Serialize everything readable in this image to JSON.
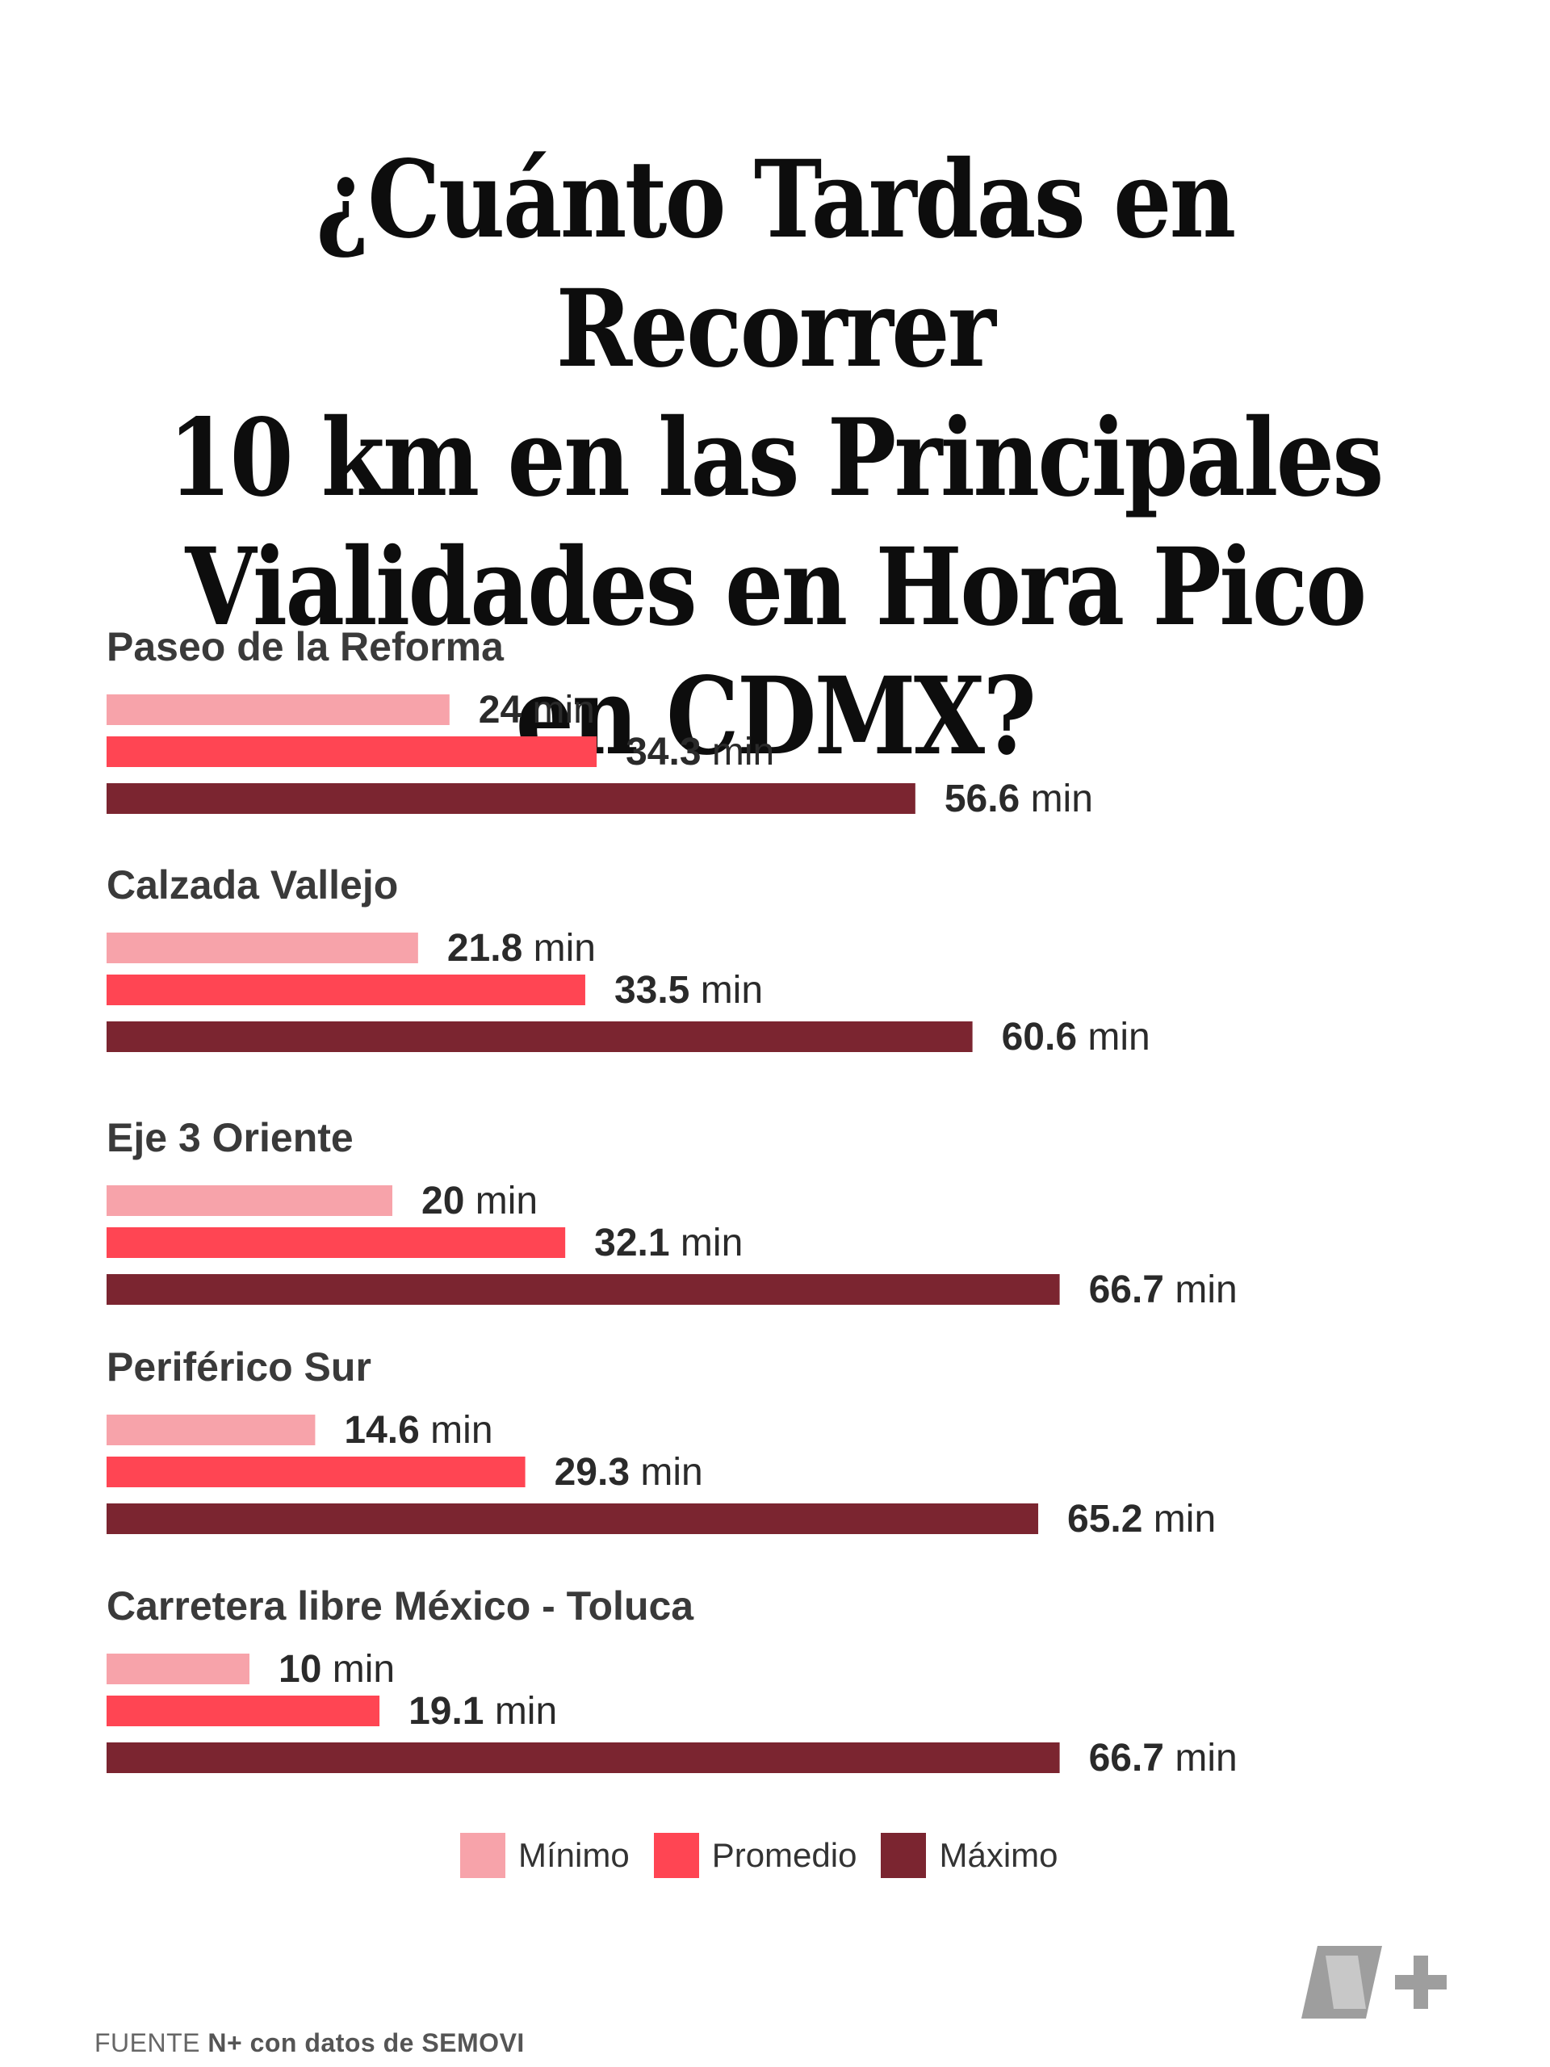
{
  "title_lines": [
    "¿Cuánto Tardas en Recorrer",
    "10 km en las Principales",
    "Vialidades en Hora Pico",
    "en CDMX?"
  ],
  "chart_data": {
    "type": "bar",
    "orientation": "horizontal",
    "unit": "min",
    "categories": [
      "Paseo de la Reforma",
      "Calzada Vallejo",
      "Eje 3 Oriente",
      "Periférico Sur",
      "Carretera libre México - Toluca"
    ],
    "series": [
      {
        "name": "Mínimo",
        "color": "#f7a3aa",
        "values": [
          24,
          21.8,
          20,
          14.6,
          10
        ]
      },
      {
        "name": "Promedio",
        "color": "#ff4553",
        "values": [
          34.3,
          33.5,
          32.1,
          29.3,
          19.1
        ]
      },
      {
        "name": "Máximo",
        "color": "#7b2530",
        "values": [
          56.6,
          60.6,
          66.7,
          65.2,
          66.7
        ]
      }
    ],
    "value_labels": [
      [
        "24",
        "34.3",
        "56.6"
      ],
      [
        "21.8",
        "33.5",
        "60.6"
      ],
      [
        "20",
        "32.1",
        "66.7"
      ],
      [
        "14.6",
        "29.3",
        "65.2"
      ],
      [
        "10",
        "19.1",
        "66.7"
      ]
    ],
    "legend_position": "bottom",
    "grid": false
  },
  "legend": {
    "items": [
      {
        "label": "Mínimo",
        "color": "#f7a3aa"
      },
      {
        "label": "Promedio",
        "color": "#ff4553"
      },
      {
        "label": "Máximo",
        "color": "#7b2530"
      }
    ]
  },
  "source": {
    "prefix": "FUENTE",
    "brand": "N+",
    "middle": "con datos de",
    "org": "SEMOVI"
  },
  "logo_icon": "n-plus-logo-icon"
}
